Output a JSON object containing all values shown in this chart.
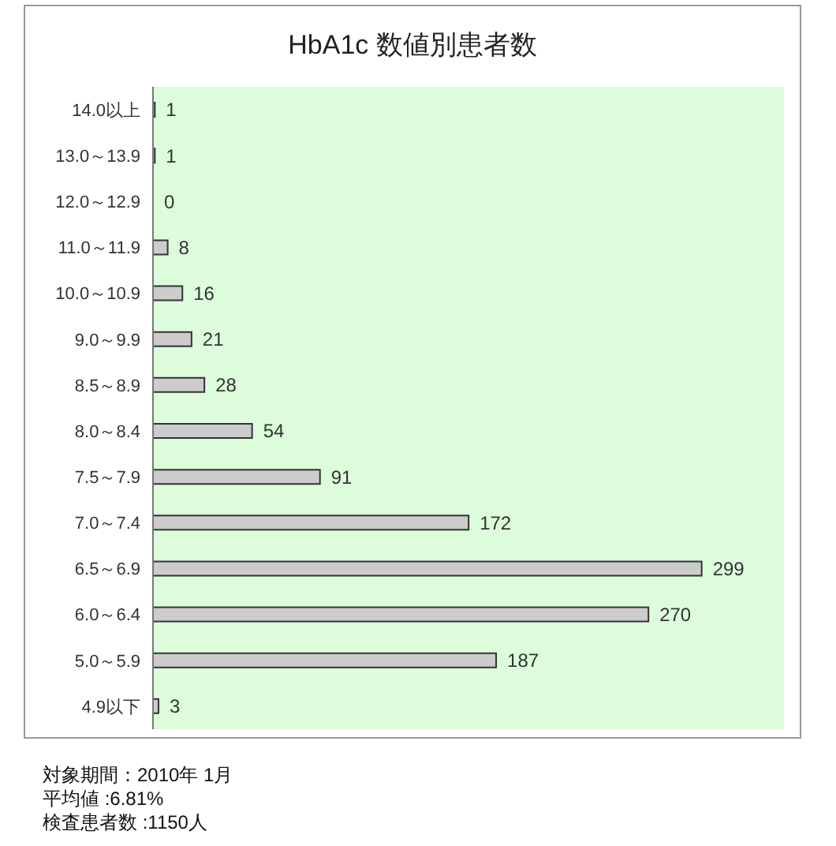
{
  "chart_data": {
    "type": "bar",
    "orientation": "horizontal",
    "title": "HbA1c 数値別患者数",
    "categories": [
      "14.0以上",
      "13.0～13.9",
      "12.0～12.9",
      "11.0～11.9",
      "10.0～10.9",
      "9.0～9.9",
      "8.5～8.9",
      "8.0～8.4",
      "7.5～7.9",
      "7.0～7.4",
      "6.5～6.9",
      "6.0～6.4",
      "5.0～5.9",
      "4.9以下"
    ],
    "values": [
      1,
      1,
      0,
      8,
      16,
      21,
      28,
      54,
      91,
      172,
      299,
      270,
      187,
      3
    ],
    "color": "#cccccc",
    "data_labels": true,
    "annotations": [
      "対象期間：2010年 1月",
      "平均値 :6.81%",
      "検査患者数 :1150人"
    ]
  }
}
